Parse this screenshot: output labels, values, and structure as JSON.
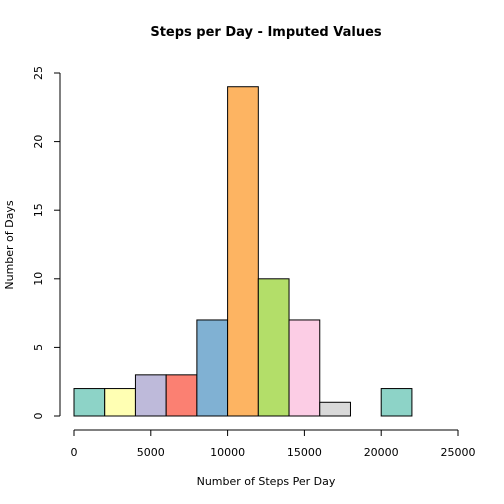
{
  "chart_data": {
    "type": "bar",
    "title": "Steps per Day - Imputed Values",
    "xlabel": "Number of Steps Per Day",
    "ylabel": "Number of Days",
    "bin_edges": [
      0,
      2000,
      4000,
      6000,
      8000,
      10000,
      12000,
      14000,
      16000,
      18000,
      20000,
      22000
    ],
    "values": [
      2,
      2,
      3,
      3,
      7,
      24,
      10,
      7,
      1,
      0,
      2
    ],
    "colors": [
      "#8dd3c7",
      "#ffffb3",
      "#bebada",
      "#fb8072",
      "#80b1d3",
      "#fdb462",
      "#b3de69",
      "#fccde5",
      "#d9d9d9",
      "#bc80bd",
      "#8dd3c7"
    ],
    "xlim": [
      0,
      25000
    ],
    "ylim": [
      0,
      25
    ],
    "xticks": [
      0,
      5000,
      10000,
      15000,
      20000,
      25000
    ],
    "yticks": [
      0,
      5,
      10,
      15,
      20,
      25
    ],
    "grid": false,
    "legend": "none"
  }
}
